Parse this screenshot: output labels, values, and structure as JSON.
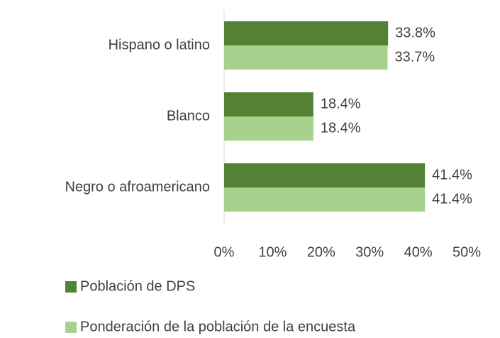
{
  "chart_data": {
    "type": "hbar",
    "categories": [
      "Hispano o latino",
      "Blanco",
      "Negro o afroamericano"
    ],
    "series": [
      {
        "name": "Población de DPS",
        "color": "#548235",
        "values": [
          33.8,
          18.4,
          41.4
        ],
        "value_labels": [
          "33.8%",
          "18.4%",
          "41.4%"
        ]
      },
      {
        "name": "Ponderación de la población de la encuesta",
        "color": "#a9d18e",
        "values": [
          33.7,
          18.4,
          41.4
        ],
        "value_labels": [
          "33.7%",
          "18.4%",
          "41.4%"
        ]
      }
    ],
    "xlim": [
      0,
      50
    ],
    "xticks": [
      {
        "value": 0,
        "label": "0%"
      },
      {
        "value": 10,
        "label": "10%"
      },
      {
        "value": 20,
        "label": "20%"
      },
      {
        "value": 30,
        "label": "30%"
      },
      {
        "value": 40,
        "label": "40%"
      },
      {
        "value": 50,
        "label": "50%"
      }
    ],
    "grid": false,
    "legend": "bottom"
  }
}
